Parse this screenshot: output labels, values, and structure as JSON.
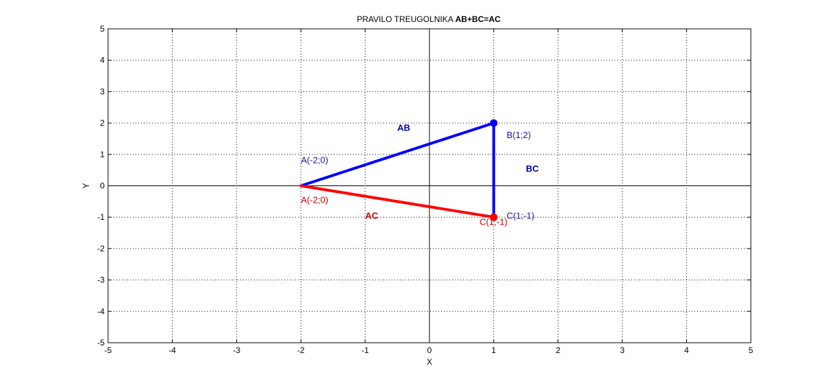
{
  "chart_data": {
    "type": "line",
    "title_prefix": "PRAVILO TREUGOLNIKA ",
    "title_bold": "AB+BC=AC",
    "xlabel": "X",
    "ylabel": "Y",
    "xlim": [
      -5,
      5
    ],
    "ylim": [
      -5,
      5
    ],
    "xticks": [
      -5,
      -4,
      -3,
      -2,
      -1,
      0,
      1,
      2,
      3,
      4,
      5
    ],
    "yticks": [
      -5,
      -4,
      -3,
      -2,
      -1,
      0,
      1,
      2,
      3,
      4,
      5
    ],
    "grid": true,
    "series": [
      {
        "id": "ab",
        "color": "#0000ff",
        "x": [
          -2,
          1
        ],
        "y": [
          0,
          2
        ]
      },
      {
        "id": "bc",
        "color": "#0000ff",
        "x": [
          1,
          1
        ],
        "y": [
          2,
          -1
        ]
      },
      {
        "id": "ac",
        "color": "#ff0000",
        "x": [
          -2,
          1
        ],
        "y": [
          0,
          -1
        ]
      }
    ],
    "points": [
      {
        "id": "b",
        "x": 1,
        "y": 2,
        "color": "#0000ff"
      },
      {
        "id": "c",
        "x": 1,
        "y": -1,
        "color": "#ff0000"
      }
    ],
    "annotations": [
      {
        "id": "ab",
        "text": "AB",
        "x": -0.5,
        "y": 1.75,
        "color": "#0000aa",
        "bold": true
      },
      {
        "id": "bc",
        "text": "BC",
        "x": 1.5,
        "y": 0.45,
        "color": "#0000aa",
        "bold": true
      },
      {
        "id": "ac",
        "text": "AC",
        "x": -1.0,
        "y": -1.05,
        "color": "#cc0000",
        "bold": true
      },
      {
        "id": "a-blue",
        "text": "A(-2;0)",
        "x": -2.0,
        "y": 0.72,
        "color": "#1a1aa0",
        "bold": false
      },
      {
        "id": "b-label",
        "text": "B(1;2)",
        "x": 1.2,
        "y": 1.52,
        "color": "#1a1aa0",
        "bold": false
      },
      {
        "id": "c-blue",
        "text": "C(1;-1)",
        "x": 1.2,
        "y": -1.05,
        "color": "#1a1aa0",
        "bold": false
      },
      {
        "id": "a-red",
        "text": "A(-2;0)",
        "x": -2.0,
        "y": -0.55,
        "color": "#cc0000",
        "bold": false
      },
      {
        "id": "c-red",
        "text": "C(1;-1)",
        "x": 0.78,
        "y": -1.25,
        "color": "#cc0000",
        "bold": false
      }
    ]
  }
}
